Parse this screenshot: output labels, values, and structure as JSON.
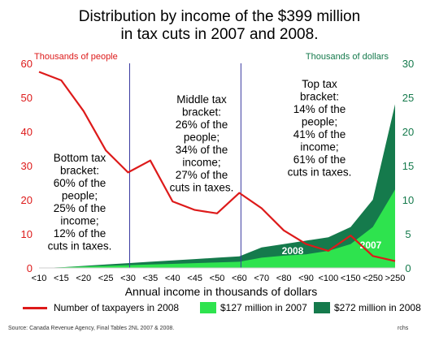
{
  "title_lines": [
    "Distribution by income of the $399 million",
    "in tax cuts in 2007 and 2008."
  ],
  "left_axis_label": "Thousands of people",
  "right_axis_label": "Thousands of dollars",
  "x_axis_title": "Annual income in thousands of dollars",
  "annotations": {
    "bottom": [
      "Bottom tax",
      "bracket:",
      "60% of the",
      "people;",
      "25% of the",
      "income;",
      "12% of the",
      "cuts in taxes."
    ],
    "middle": [
      "Middle tax",
      "bracket:",
      "26% of the",
      "people;",
      "34% of the",
      "income;",
      "27% of the",
      "cuts in taxes."
    ],
    "top": [
      "Top tax",
      "bracket:",
      "14% of the",
      "people;",
      "41% of the",
      "income;",
      "61% of the",
      "cuts in taxes."
    ],
    "label_2008": "2008",
    "label_2007": "2007"
  },
  "legend": {
    "line": "Number of taxpayers in 2008",
    "area2007": "$127 million in 2007",
    "area2008": "$272 million in 2008"
  },
  "source": "Source: Canada Revenue Agency, Final Tables 2NL 2007 & 2008.",
  "credit": "rchs",
  "colors": {
    "line": "#dd1a1a",
    "area2007": "#2ee34e",
    "area2008": "#157a4c",
    "left_axis": "#dd1a1a",
    "right_axis": "#157a4c",
    "divider": "#3a3aa0"
  },
  "chart_data": {
    "type": "line+area",
    "categories": [
      "<10",
      "<15",
      "<20",
      "<25",
      "<30",
      "<35",
      "<40",
      "<45",
      "<50",
      "<60",
      "<70",
      "<80",
      "<90",
      "<100",
      "<150",
      "<250",
      ">250"
    ],
    "left_axis": {
      "label": "Thousands of people",
      "range": [
        0,
        60
      ],
      "ticks": [
        0,
        10,
        20,
        30,
        40,
        50,
        60
      ]
    },
    "right_axis": {
      "label": "Thousands of dollars",
      "range": [
        0,
        30
      ],
      "ticks": [
        0,
        5,
        10,
        15,
        20,
        25,
        30
      ]
    },
    "xlabel": "Annual income in thousands of dollars",
    "series": [
      {
        "name": "Number of taxpayers in 2008",
        "kind": "line",
        "axis": "left",
        "values": [
          57.5,
          55,
          46,
          34.5,
          28,
          31.5,
          19.5,
          17,
          16,
          22,
          17.5,
          11,
          7,
          5,
          9.5,
          3.5,
          2
        ]
      },
      {
        "name": "$127 million in 2007",
        "kind": "area",
        "axis": "right",
        "values": [
          0,
          0.1,
          0.2,
          0.3,
          0.4,
          0.5,
          0.6,
          0.7,
          0.8,
          0.9,
          1.5,
          1.8,
          2.0,
          2.5,
          3.5,
          6.0,
          11.5
        ]
      },
      {
        "name": "$272 million in 2008",
        "kind": "area",
        "axis": "right",
        "values": [
          0,
          0.1,
          0.3,
          0.5,
          0.7,
          0.9,
          1.1,
          1.3,
          1.5,
          1.7,
          3.0,
          3.5,
          4.0,
          4.5,
          6.0,
          10.0,
          24.0
        ]
      }
    ],
    "dividers_after_categories": [
      "<30",
      "<60"
    ]
  }
}
